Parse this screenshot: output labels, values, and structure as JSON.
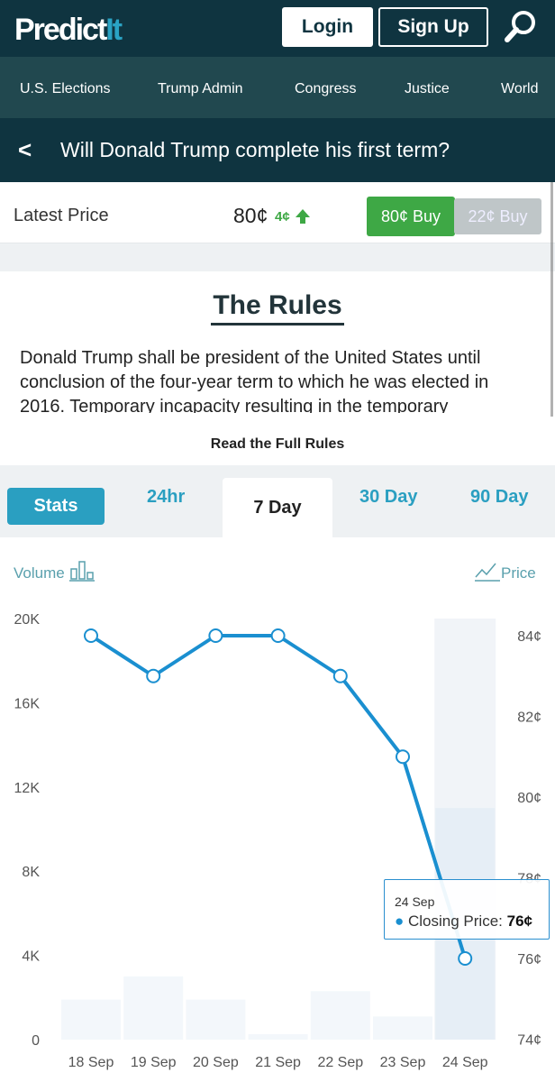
{
  "header": {
    "logo": "PredictIt",
    "logo_a": "Predict",
    "logo_b": "It",
    "login": "Login",
    "signup": "Sign Up"
  },
  "nav": [
    "U.S. Elections",
    "Trump Admin",
    "Congress",
    "Justice",
    "World"
  ],
  "market": {
    "title": "Will Donald Trump complete his first term?",
    "back": "<",
    "latest_label": "Latest Price",
    "latest": "80¢",
    "change": "4¢",
    "buy_yes": "80¢ Buy",
    "buy_no": "22¢ Buy"
  },
  "rules": {
    "heading": "The Rules",
    "text": "Donald Trump shall be president of the United States until conclusion of the four-year term to which he was elected in 2016. Temporary incapacity resulting in the temporary",
    "read_full": "Read the Full Rules"
  },
  "tabs": {
    "stats": "Stats",
    "t24": "24hr",
    "t7": "7 Day",
    "t30": "30 Day",
    "t90": "90 Day"
  },
  "chart_labels": {
    "volume": "Volume",
    "price": "Price"
  },
  "tooltip": {
    "date": "24 Sep",
    "label": "Closing Price:",
    "value": "76¢"
  },
  "colors": {
    "line": "#1a8fd0",
    "accent": "#2a9fc1",
    "green": "#3ea845",
    "header": "#0f3440"
  },
  "chart_data": {
    "type": "line",
    "categories": [
      "18 Sep",
      "19 Sep",
      "20 Sep",
      "21 Sep",
      "22 Sep",
      "23 Sep",
      "24 Sep"
    ],
    "series": [
      {
        "name": "Closing Price",
        "axis": "right",
        "unit": "¢",
        "values": [
          84,
          83,
          84,
          84,
          83,
          81,
          76
        ]
      },
      {
        "name": "Volume",
        "axis": "left",
        "type": "bar",
        "values": [
          1900,
          3000,
          1900,
          260,
          2300,
          1100,
          11000
        ]
      }
    ],
    "left_ticks": [
      "0",
      "4K",
      "8K",
      "12K",
      "16K",
      "20K"
    ],
    "left_ylim": [
      0,
      20000
    ],
    "right_ticks": [
      "74¢",
      "76¢",
      "78¢",
      "80¢",
      "82¢",
      "84¢"
    ],
    "right_ylim": [
      74,
      84.5
    ],
    "highlighted": "24 Sep"
  }
}
